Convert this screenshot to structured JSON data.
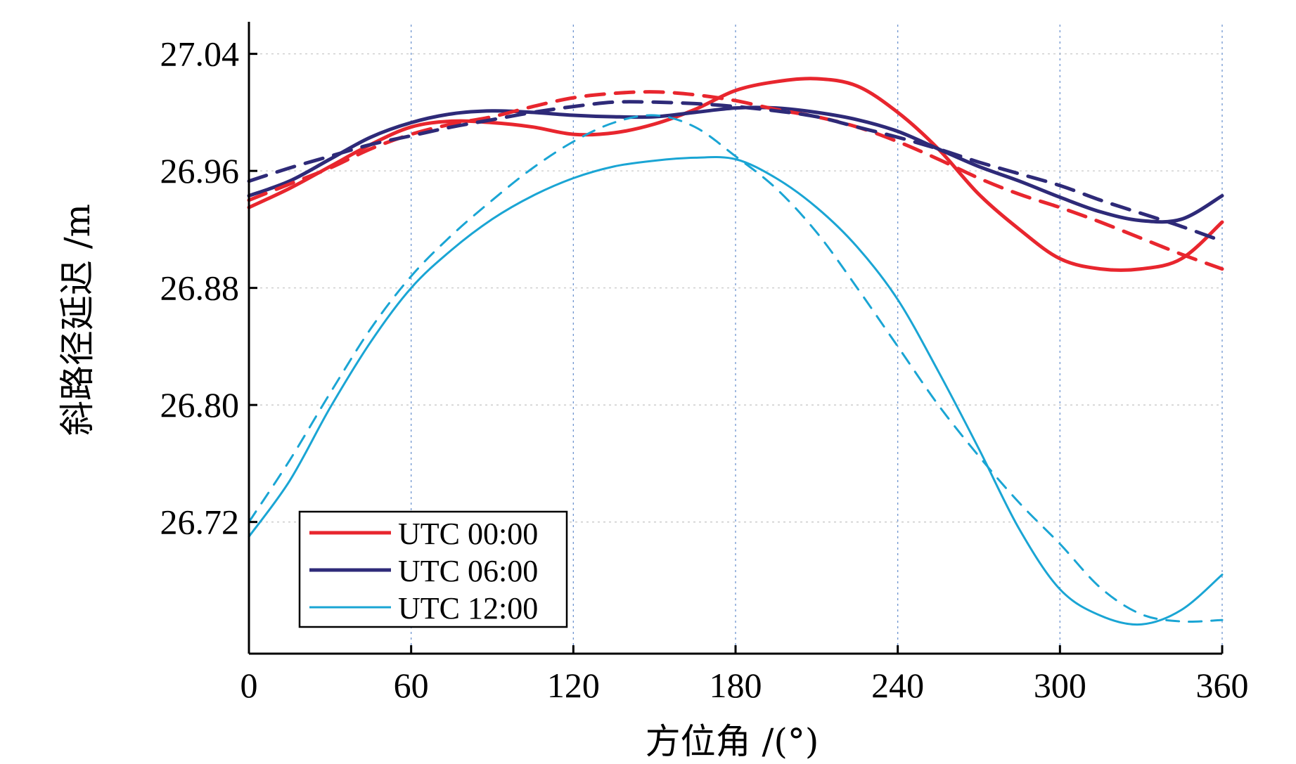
{
  "chart_data": {
    "type": "line",
    "title": "",
    "xlabel": "方位角 /(°)",
    "ylabel": "斜路径延迟 /m",
    "xlim": [
      0,
      360
    ],
    "ylim": [
      26.63,
      27.06
    ],
    "xticks": [
      0,
      60,
      120,
      180,
      240,
      300,
      360
    ],
    "xtick_labels": [
      "0",
      "60",
      "120",
      "180",
      "240",
      "300",
      "360"
    ],
    "yticks": [
      26.72,
      26.8,
      26.88,
      26.96,
      27.04
    ],
    "ytick_labels": [
      "26.72",
      "26.80",
      "26.88",
      "26.96",
      "27.04"
    ],
    "grid": true,
    "legend_position": "bottom-left",
    "series": [
      {
        "name": "UTC 00:00",
        "color": "#e8262e",
        "style": "solid",
        "x": [
          0,
          15,
          30,
          45,
          60,
          75,
          90,
          105,
          120,
          135,
          150,
          165,
          180,
          195,
          210,
          225,
          240,
          255,
          270,
          285,
          300,
          315,
          330,
          345,
          360
        ],
        "y": [
          26.935,
          26.948,
          26.963,
          26.978,
          26.99,
          26.994,
          26.993,
          26.99,
          26.985,
          26.986,
          26.992,
          27.002,
          27.015,
          27.021,
          27.023,
          27.018,
          27.0,
          26.975,
          26.944,
          26.92,
          26.9,
          26.893,
          26.893,
          26.9,
          26.925
        ]
      },
      {
        "name": "UTC 06:00",
        "color": "#2e2a78",
        "style": "solid",
        "x": [
          0,
          15,
          30,
          45,
          60,
          75,
          90,
          105,
          120,
          135,
          150,
          165,
          180,
          195,
          210,
          225,
          240,
          255,
          270,
          285,
          300,
          315,
          330,
          345,
          360
        ],
        "y": [
          26.943,
          26.953,
          26.968,
          26.983,
          26.993,
          26.999,
          27.001,
          27.0,
          26.998,
          26.997,
          26.997,
          27.0,
          27.003,
          27.003,
          27.0,
          26.995,
          26.987,
          26.975,
          26.963,
          26.953,
          26.942,
          26.932,
          26.926,
          26.927,
          26.943
        ]
      },
      {
        "name": "UTC 12:00",
        "color": "#1aa5d4",
        "style": "solid",
        "x": [
          0,
          15,
          30,
          45,
          60,
          75,
          90,
          105,
          120,
          135,
          150,
          165,
          180,
          195,
          210,
          225,
          240,
          255,
          270,
          285,
          300,
          315,
          330,
          345,
          360
        ],
        "y": [
          26.71,
          26.748,
          26.798,
          26.843,
          26.88,
          26.906,
          26.927,
          26.943,
          26.955,
          26.963,
          26.967,
          26.969,
          26.968,
          26.955,
          26.935,
          26.908,
          26.872,
          26.823,
          26.77,
          26.715,
          26.674,
          26.656,
          26.65,
          26.66,
          26.684
        ]
      },
      {
        "name": "",
        "color": "#e8262e",
        "style": "dashed",
        "x": [
          0,
          15,
          30,
          45,
          60,
          75,
          90,
          105,
          120,
          135,
          150,
          165,
          180,
          195,
          210,
          225,
          240,
          255,
          270,
          285,
          300,
          315,
          330,
          345,
          360
        ],
        "y": [
          26.94,
          26.951,
          26.962,
          26.975,
          26.985,
          26.992,
          26.997,
          27.004,
          27.01,
          27.013,
          27.014,
          27.012,
          27.008,
          27.002,
          26.997,
          26.99,
          26.98,
          26.968,
          26.955,
          26.944,
          26.935,
          26.925,
          26.914,
          26.903,
          26.893
        ]
      },
      {
        "name": "",
        "color": "#2e2a78",
        "style": "dashed",
        "x": [
          0,
          15,
          30,
          45,
          60,
          75,
          90,
          105,
          120,
          135,
          150,
          165,
          180,
          195,
          210,
          225,
          240,
          255,
          270,
          285,
          300,
          315,
          330,
          345,
          360
        ],
        "y": [
          26.953,
          26.962,
          26.97,
          26.978,
          26.984,
          26.99,
          26.995,
          27.0,
          27.004,
          27.007,
          27.007,
          27.006,
          27.004,
          27.001,
          26.997,
          26.99,
          26.983,
          26.975,
          26.966,
          26.958,
          26.95,
          26.94,
          26.931,
          26.922,
          26.912
        ]
      },
      {
        "name": "",
        "color": "#1aa5d4",
        "style": "dashed",
        "x": [
          0,
          15,
          30,
          45,
          60,
          75,
          90,
          105,
          120,
          135,
          150,
          165,
          180,
          195,
          210,
          225,
          240,
          255,
          270,
          285,
          300,
          315,
          330,
          345,
          360
        ],
        "y": [
          26.72,
          26.762,
          26.808,
          26.852,
          26.888,
          26.916,
          26.94,
          26.962,
          26.98,
          26.993,
          26.998,
          26.99,
          26.97,
          26.948,
          26.918,
          26.88,
          26.84,
          26.8,
          26.765,
          26.733,
          26.705,
          26.675,
          26.657,
          26.652,
          26.653
        ]
      }
    ]
  }
}
